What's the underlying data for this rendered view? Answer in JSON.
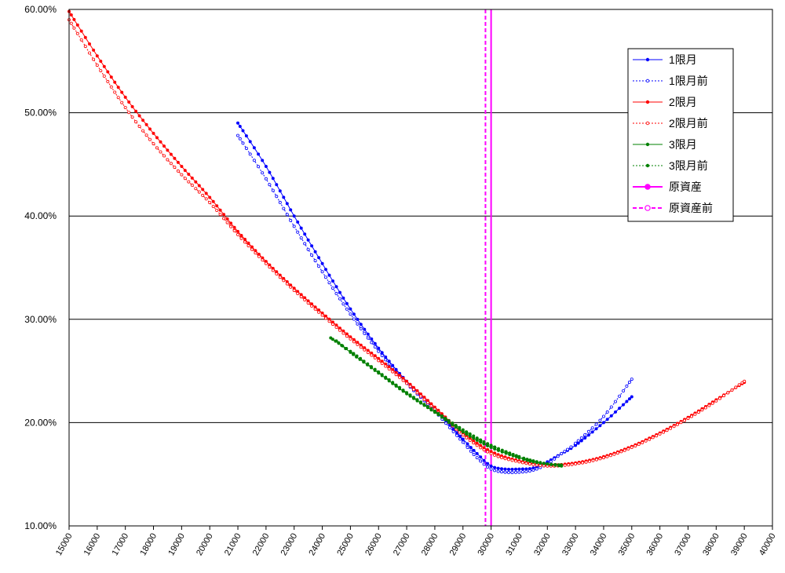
{
  "chart_data": {
    "type": "line",
    "title": "",
    "xlabel": "",
    "ylabel": "",
    "xlim": [
      15000,
      40000
    ],
    "ylim": [
      0.1,
      0.6
    ],
    "x_ticks": [
      15000,
      16000,
      17000,
      18000,
      19000,
      20000,
      21000,
      22000,
      23000,
      24000,
      25000,
      26000,
      27000,
      28000,
      29000,
      30000,
      31000,
      32000,
      33000,
      34000,
      35000,
      36000,
      37000,
      38000,
      39000,
      40000
    ],
    "x_tick_labels": [
      "15000",
      "16000",
      "17000",
      "18000",
      "19000",
      "20000",
      "21000",
      "22000",
      "23000",
      "24000",
      "25000",
      "26000",
      "27000",
      "28000",
      "29000",
      "30000",
      "31000",
      "32000",
      "33000",
      "34000",
      "35000",
      "36000",
      "37000",
      "38000",
      "39000",
      "40000"
    ],
    "y_ticks": [
      0.1,
      0.2,
      0.3,
      0.4,
      0.5,
      0.6
    ],
    "y_tick_labels": [
      "10.00%",
      "20.00%",
      "30.00%",
      "40.00%",
      "50.00%",
      "60.00%"
    ],
    "grid": "horizontal",
    "legend_position": "top-right",
    "series": [
      {
        "name": "1限月",
        "color": "#0000ff",
        "style": "solid",
        "marker": "filled",
        "x": [
          21000,
          22000,
          23000,
          24000,
          25000,
          26000,
          27000,
          28000,
          29000,
          29500,
          30000,
          30500,
          31000,
          31500,
          32000,
          32500,
          33000,
          34000,
          35000
        ],
        "y": [
          0.49,
          0.448,
          0.4,
          0.354,
          0.31,
          0.272,
          0.24,
          0.213,
          0.184,
          0.17,
          0.158,
          0.155,
          0.155,
          0.156,
          0.162,
          0.17,
          0.178,
          0.2,
          0.225
        ]
      },
      {
        "name": "1限月前",
        "color": "#0000ff",
        "style": "dotted",
        "marker": "open",
        "x": [
          21000,
          22000,
          23000,
          24000,
          25000,
          26000,
          27000,
          28000,
          29000,
          29500,
          30000,
          30500,
          31000,
          31500,
          32000,
          32500,
          33000,
          34000,
          35000
        ],
        "y": [
          0.478,
          0.436,
          0.39,
          0.346,
          0.305,
          0.269,
          0.238,
          0.211,
          0.181,
          0.166,
          0.155,
          0.152,
          0.152,
          0.154,
          0.16,
          0.17,
          0.18,
          0.206,
          0.242
        ]
      },
      {
        "name": "2限月",
        "color": "#ff0000",
        "style": "solid",
        "marker": "filled",
        "x": [
          15000,
          16000,
          17000,
          18000,
          19000,
          20000,
          21000,
          22000,
          23000,
          24000,
          25000,
          26000,
          27000,
          28000,
          29000,
          30000,
          31000,
          32000,
          33000,
          34000,
          35000,
          36000,
          37000,
          38000,
          39000
        ],
        "y": [
          0.598,
          0.555,
          0.515,
          0.48,
          0.448,
          0.418,
          0.385,
          0.356,
          0.33,
          0.306,
          0.283,
          0.262,
          0.24,
          0.215,
          0.19,
          0.172,
          0.163,
          0.159,
          0.161,
          0.167,
          0.177,
          0.19,
          0.205,
          0.222,
          0.239
        ]
      },
      {
        "name": "2限月前",
        "color": "#ff0000",
        "style": "dotted",
        "marker": "open",
        "x": [
          15000,
          16000,
          17000,
          18000,
          19000,
          20000,
          21000,
          22000,
          23000,
          24000,
          25000,
          26000,
          27000,
          28000,
          29000,
          30000,
          31000,
          32000,
          33000,
          34000,
          35000,
          36000,
          37000,
          38000,
          39000
        ],
        "y": [
          0.59,
          0.546,
          0.505,
          0.47,
          0.44,
          0.413,
          0.382,
          0.354,
          0.328,
          0.304,
          0.281,
          0.26,
          0.238,
          0.213,
          0.188,
          0.17,
          0.162,
          0.158,
          0.16,
          0.166,
          0.176,
          0.189,
          0.204,
          0.221,
          0.24
        ]
      },
      {
        "name": "3限月",
        "color": "#008000",
        "style": "solid",
        "marker": "filled",
        "x": [
          24500,
          25000,
          26000,
          27000,
          28000,
          29000,
          30000,
          31000,
          31500,
          32000,
          32500
        ],
        "y": [
          0.279,
          0.268,
          0.248,
          0.228,
          0.21,
          0.191,
          0.176,
          0.166,
          0.162,
          0.16,
          0.159
        ]
      },
      {
        "name": "3限月前",
        "color": "#008000",
        "style": "dotted",
        "marker": "filled",
        "x": [
          24300,
          25000,
          26000,
          27000,
          28000,
          29000,
          30000,
          31000,
          31500,
          32000,
          32500
        ],
        "y": [
          0.282,
          0.269,
          0.249,
          0.229,
          0.211,
          0.193,
          0.178,
          0.167,
          0.163,
          0.16,
          0.158
        ]
      },
      {
        "name": "原資産",
        "color": "#ff00ff",
        "style": "solid",
        "marker": "none",
        "type": "vline",
        "x_value": 30000
      },
      {
        "name": "原資産前",
        "color": "#ff00ff",
        "style": "dashed",
        "marker": "none",
        "type": "vline",
        "x_value": 29800
      }
    ]
  }
}
